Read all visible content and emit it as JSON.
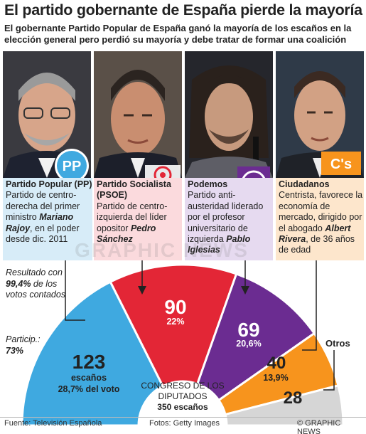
{
  "title": "El partido gobernante de España pierde la mayoría",
  "subtitle": "El gobernante Partido Popular de España ganó la mayoría de los escaños en la elección general pero perdió su mayoría y debe tratar de formar una coalición",
  "parties": [
    {
      "name": "Partido Popular (PP)",
      "desc_pre": "Partido de centro-derecha del primer ministro ",
      "leader": "Mariano Rajoy",
      "desc_post": ", en el poder desde dic. 2011",
      "logo_text": "PP",
      "color": "#3fa9e0"
    },
    {
      "name": "Partido Socialista (PSOE)",
      "desc_pre": "Partido de centro-izquierda del líder opositor ",
      "leader": "Pedro Sánchez",
      "desc_post": "",
      "logo_text": "",
      "color": "#e32636"
    },
    {
      "name": "Podemos",
      "desc_pre": "Partido anti-austeridad liderado por el profesor universitario de izquierda ",
      "leader": "Pablo Iglesias",
      "desc_post": "",
      "logo_text": "",
      "color": "#6b2c91"
    },
    {
      "name": "Ciudadanos",
      "desc_pre": "Centrista, favorece la economía de mercado, dirigido por el abogado ",
      "leader": "Albert Rivera",
      "desc_post": ", de 36 años de edad",
      "logo_text": "C's",
      "color": "#f7941d"
    }
  ],
  "result_text": {
    "line1": "Resultado con ",
    "bold": "99,4%",
    "line2": " de los votos contados"
  },
  "particip": {
    "label": "Particip.:",
    "value": "73%"
  },
  "chart_data": {
    "type": "hemicycle",
    "title": "CONGRESO DE LOS DIPUTADOS",
    "total_label": "350 escaños",
    "total": 350,
    "series": [
      {
        "name": "PP",
        "seats": 123,
        "seats_label": "escaños",
        "pct": "28,7% del voto",
        "color": "#3fa9e0"
      },
      {
        "name": "PSOE",
        "seats": 90,
        "pct": "22%",
        "color": "#e32636"
      },
      {
        "name": "Podemos",
        "seats": 69,
        "pct": "20,6%",
        "color": "#6b2c91"
      },
      {
        "name": "Ciudadanos",
        "seats": 40,
        "pct": "13,9%",
        "color": "#f7941d"
      },
      {
        "name": "Otros",
        "seats": 28,
        "pct": "",
        "color": "#d6d6d6"
      }
    ]
  },
  "otros_label": "Otros",
  "watermark": "GRAPHIC NEWS",
  "footer": {
    "source": "Fuente: Televisión Española",
    "photos": "Fotos: Getty Images",
    "credit": "© GRAPHIC NEWS"
  }
}
